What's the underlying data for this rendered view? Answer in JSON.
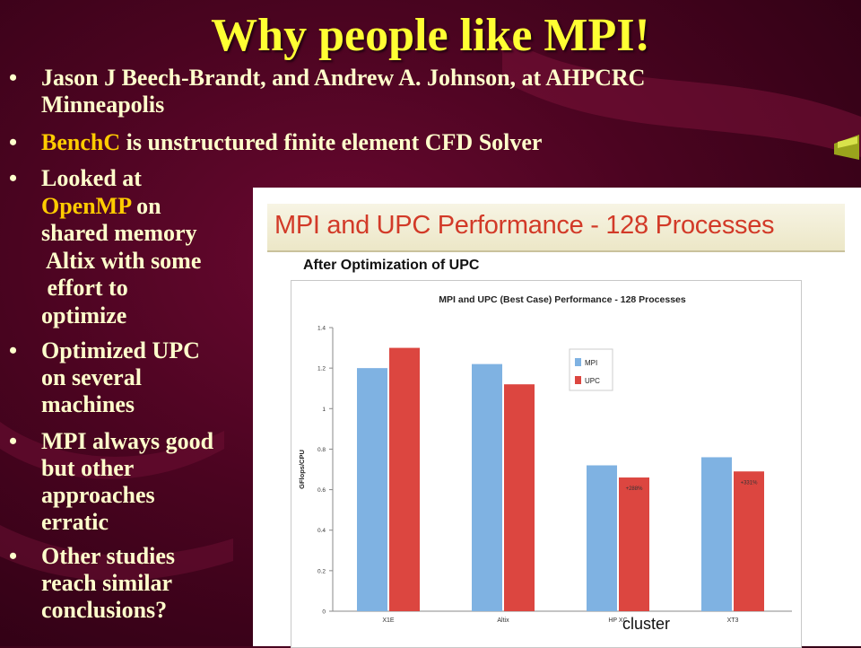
{
  "slide": {
    "title": "Why people like MPI!",
    "bullets": [
      {
        "bullet": "•",
        "line1": "Jason J Beech-Brandt, and Andrew A. Johnson, at AHPCRC",
        "line2": "Minneapolis"
      },
      {
        "bullet": "•",
        "highlight": "BenchC",
        "rest": " is unstructured finite element CFD Solver"
      },
      {
        "bullet": "•",
        "l1": "Looked at",
        "l2_hl": "OpenMP",
        "l2_rest": " on",
        "l3": "shared memory",
        "l4": " Altix with some",
        "l5": " effort to",
        "l6": "optimize"
      },
      {
        "bullet": "•",
        "lines": [
          "Optimized UPC",
          "on several",
          "machines"
        ]
      },
      {
        "bullet": "•",
        "lines": [
          "MPI always good",
          "but other",
          "approaches",
          "erratic"
        ]
      },
      {
        "bullet": "•",
        "lines": [
          "Other studies",
          "reach similar",
          "conclusions?"
        ]
      }
    ]
  },
  "figure": {
    "banner": "MPI and UPC Performance - 128 Processes",
    "subtitle": "After Optimization of UPC",
    "note": "cluster"
  },
  "colors": {
    "title": "#ffff33",
    "text": "#ffffcc",
    "highlight": "#ffcc00",
    "mpi": "#7fb2e2",
    "upc": "#dc4640",
    "banner_text": "#d23a28"
  },
  "chart_data": {
    "type": "bar",
    "title": "MPI and UPC (Best Case) Performance - 128 Processes",
    "xlabel": "",
    "ylabel": "GFlops/CPU",
    "categories": [
      "X1E",
      "Altix",
      "HP XC",
      "XT3"
    ],
    "series": [
      {
        "name": "MPI",
        "values": [
          1.2,
          1.22,
          0.72,
          0.76
        ]
      },
      {
        "name": "UPC",
        "values": [
          1.3,
          1.12,
          0.66,
          0.69
        ]
      }
    ],
    "annotations": [
      {
        "category": "HP XC",
        "series": "UPC",
        "text": "+288%"
      },
      {
        "category": "XT3",
        "series": "UPC",
        "text": "+331%"
      }
    ],
    "ylim": [
      0,
      1.4
    ],
    "yticks": [
      "0",
      "0.2",
      "0.4",
      "0.6",
      "0.8",
      "1",
      "1.2",
      "1.4"
    ],
    "grid": false,
    "legend": "upper-right"
  }
}
